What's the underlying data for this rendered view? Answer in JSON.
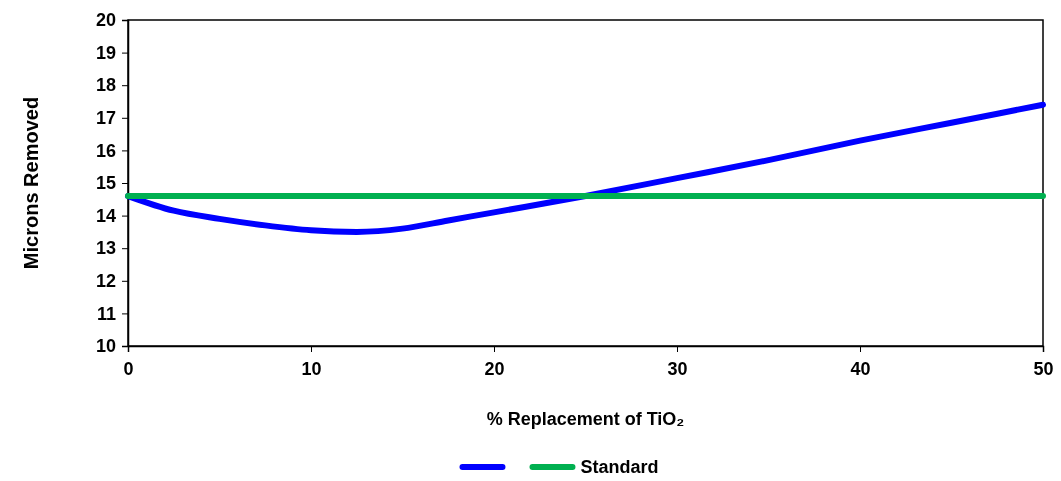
{
  "chart_data": {
    "type": "line",
    "xlabel": "% Replacement of TiO₂",
    "ylabel": "Microns Removed",
    "xlim": [
      0,
      50
    ],
    "xticks": [
      0,
      10,
      20,
      30,
      40,
      50
    ],
    "ylim": [
      10,
      20
    ],
    "yticks": [
      10,
      11,
      12,
      13,
      14,
      15,
      16,
      17,
      18,
      19,
      20
    ],
    "grid": false,
    "legend": "bottom",
    "marker": "none",
    "line_style": "solid",
    "series": [
      {
        "color": "#0000ff",
        "x": [
          0,
          2.5,
          5,
          7.5,
          10,
          12.5,
          15,
          17.5,
          20,
          25,
          30,
          35,
          40,
          45,
          50
        ],
        "values": [
          14.6,
          14.15,
          13.9,
          13.7,
          13.55,
          13.5,
          13.6,
          13.85,
          14.1,
          14.6,
          15.15,
          15.7,
          16.3,
          16.85,
          17.4
        ]
      },
      {
        "name": "Standard",
        "color": "#00b050",
        "x": [
          0,
          50
        ],
        "values": [
          14.6,
          14.6
        ]
      }
    ]
  }
}
